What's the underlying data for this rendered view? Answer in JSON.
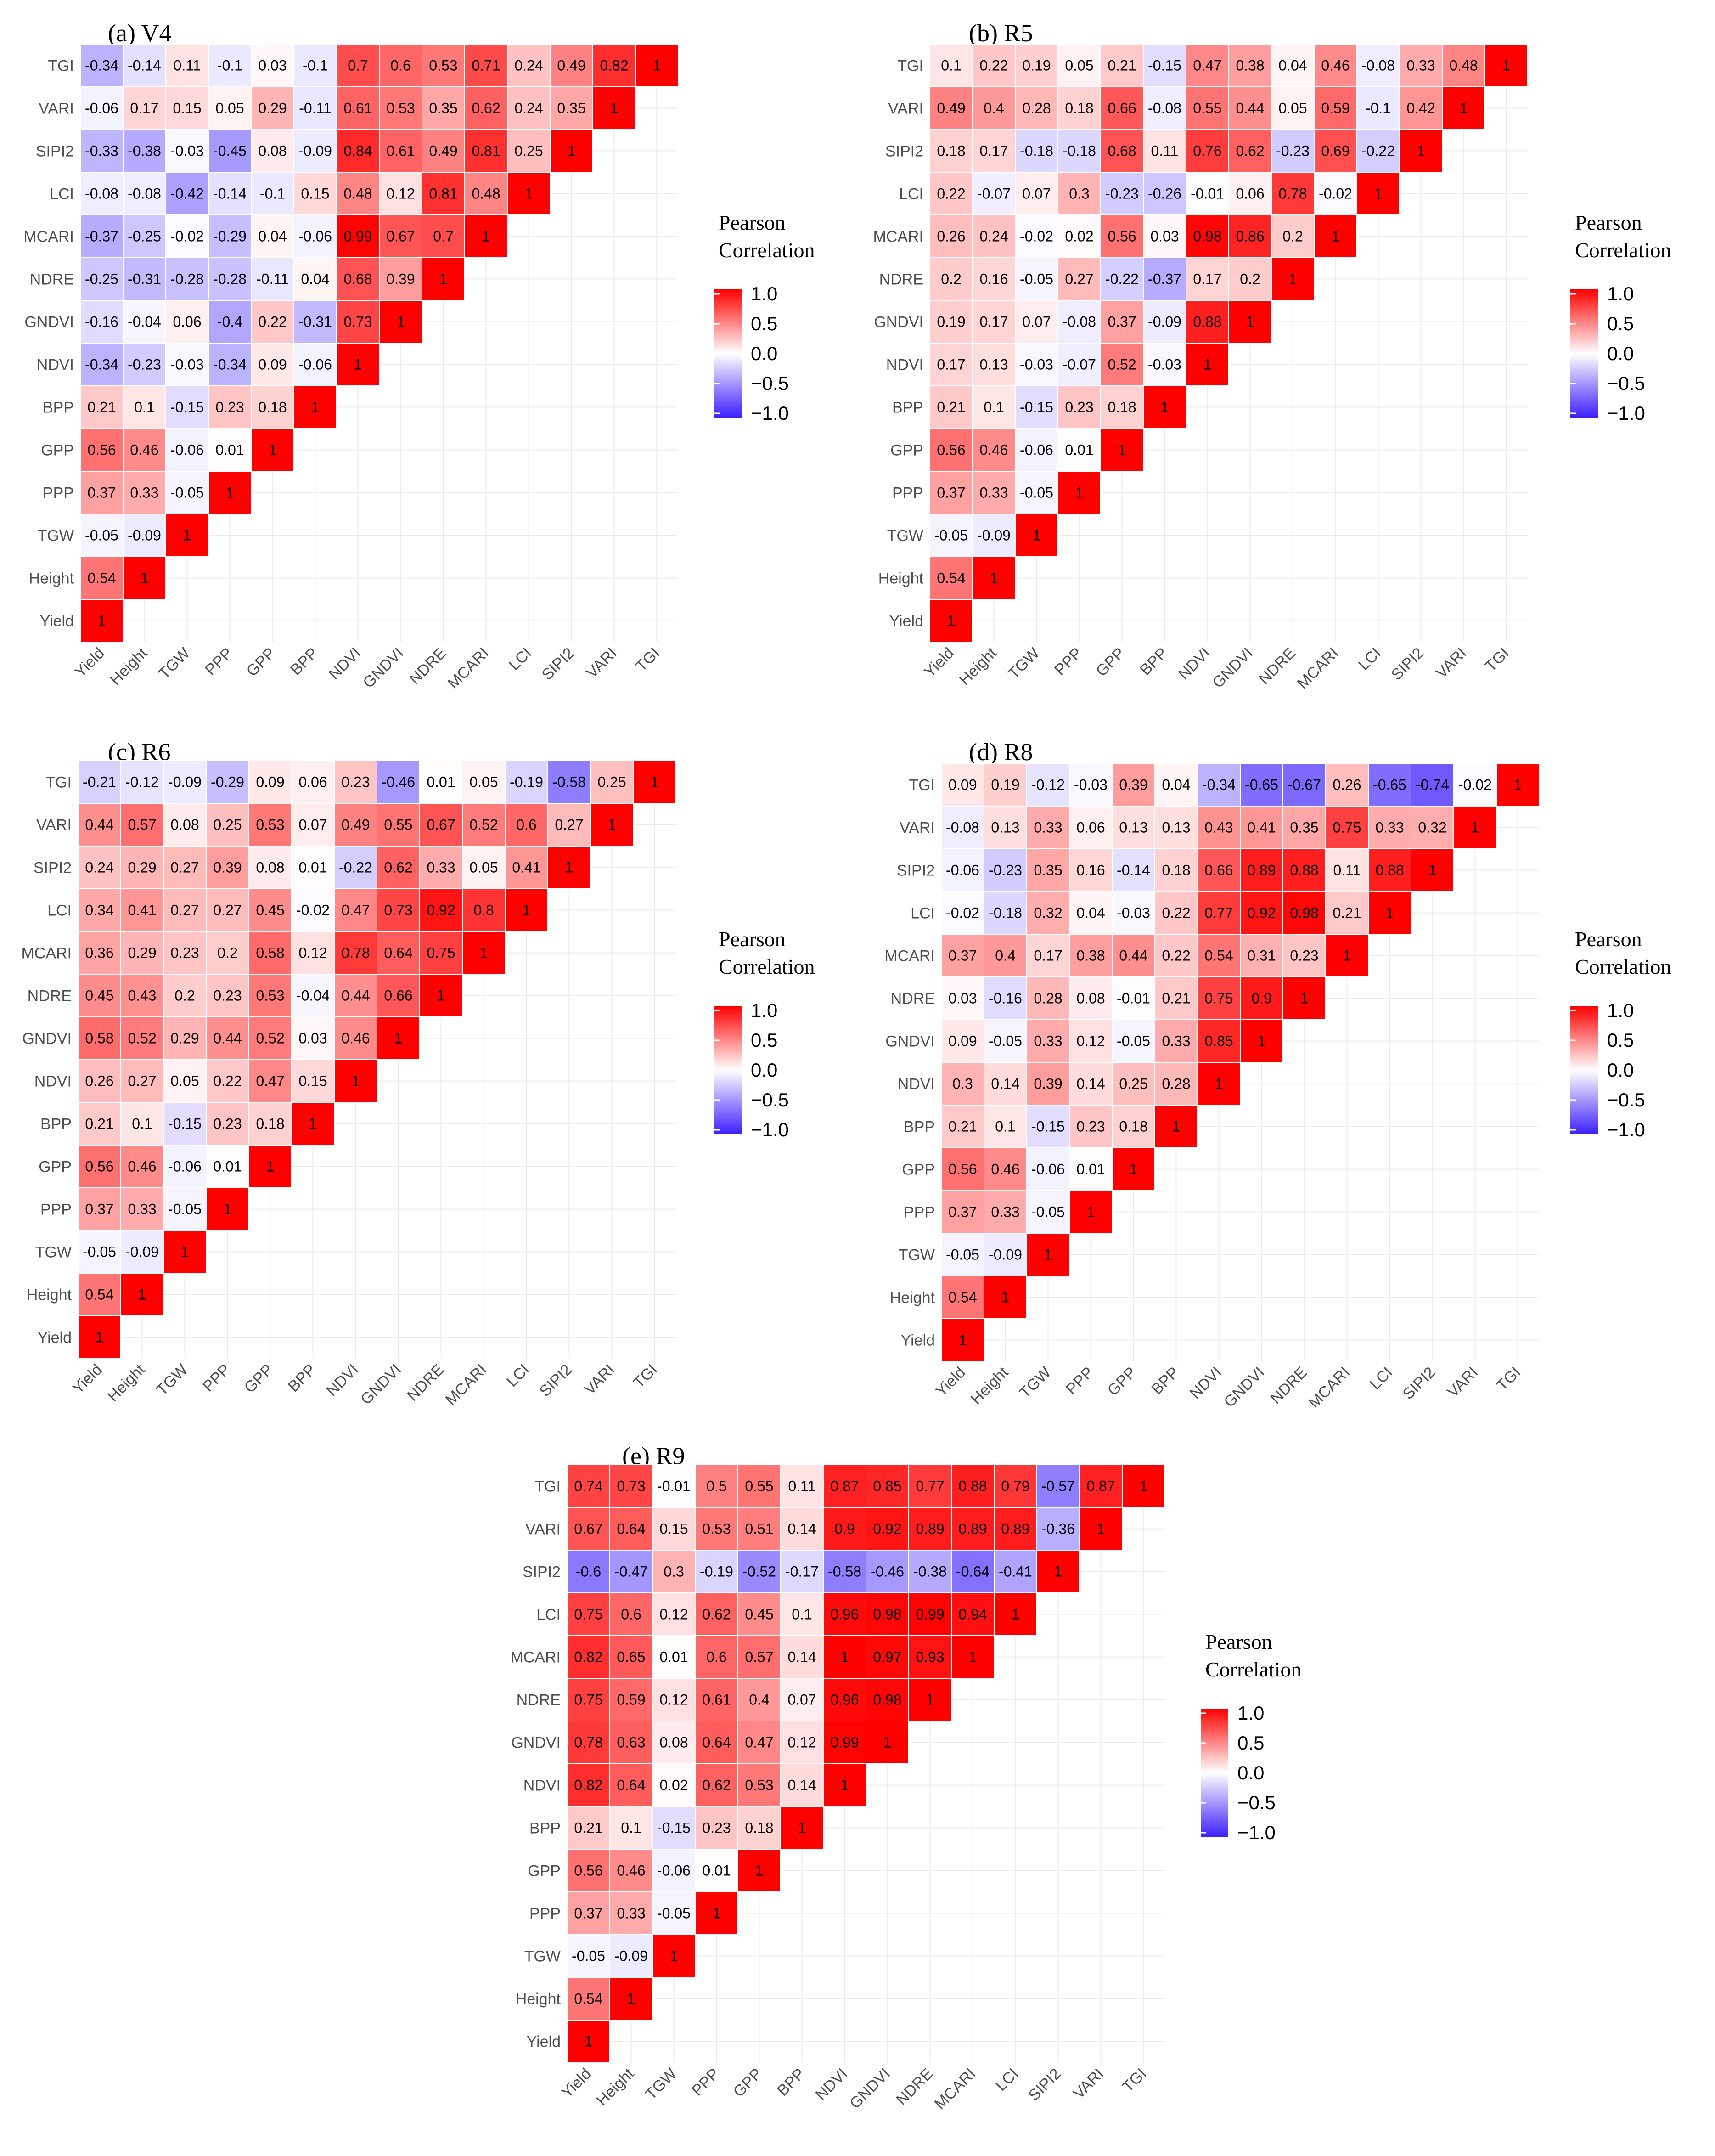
{
  "figure": {
    "legend": {
      "title_line1": "Pearson",
      "title_line2": "Correlation",
      "ticks": [
        "1.0",
        "0.5",
        "0.0",
        "−0.5",
        "−1.0"
      ],
      "tick_values": [
        1.0,
        0.5,
        0.0,
        -0.5,
        -1.0
      ]
    },
    "colors": {
      "positive": "#ff0000",
      "zero": "#ffffff",
      "negative": "#3b1fff"
    }
  },
  "chart_data": [
    {
      "type": "heatmap",
      "title": "(a) V4",
      "x_labels": [
        "Yield",
        "Height",
        "TGW",
        "PPP",
        "GPP",
        "BPP",
        "NDVI",
        "GNDVI",
        "NDRE",
        "MCARI",
        "LCI",
        "SIPI2",
        "VARI",
        "TGI"
      ],
      "y_labels": [
        "Yield",
        "Height",
        "TGW",
        "PPP",
        "GPP",
        "BPP",
        "NDVI",
        "GNDVI",
        "NDRE",
        "MCARI",
        "LCI",
        "SIPI2",
        "VARI",
        "TGI"
      ],
      "values": [
        [
          1
        ],
        [
          0.54,
          1
        ],
        [
          -0.05,
          -0.09,
          1
        ],
        [
          0.37,
          0.33,
          -0.05,
          1
        ],
        [
          0.56,
          0.46,
          -0.06,
          0.01,
          1
        ],
        [
          0.21,
          0.1,
          -0.15,
          0.23,
          0.18,
          1
        ],
        [
          -0.34,
          -0.23,
          -0.03,
          -0.34,
          0.09,
          -0.06,
          1
        ],
        [
          -0.16,
          -0.04,
          0.06,
          -0.4,
          0.22,
          -0.31,
          0.73,
          1
        ],
        [
          -0.25,
          -0.31,
          -0.28,
          -0.28,
          -0.11,
          0.04,
          0.68,
          0.39,
          1
        ],
        [
          -0.37,
          -0.25,
          -0.02,
          -0.29,
          0.04,
          -0.06,
          0.99,
          0.67,
          0.7,
          1
        ],
        [
          -0.08,
          -0.08,
          -0.42,
          -0.14,
          -0.1,
          0.15,
          0.48,
          0.12,
          0.81,
          0.48,
          1
        ],
        [
          -0.33,
          -0.38,
          -0.03,
          -0.45,
          0.08,
          -0.09,
          0.84,
          0.61,
          0.49,
          0.81,
          0.25,
          1
        ],
        [
          -0.06,
          0.17,
          0.15,
          0.05,
          0.29,
          -0.11,
          0.61,
          0.53,
          0.35,
          0.62,
          0.24,
          0.35,
          1
        ],
        [
          -0.34,
          -0.14,
          0.11,
          -0.1,
          0.03,
          -0.1,
          0.7,
          0.6,
          0.53,
          0.71,
          0.24,
          0.49,
          0.82,
          1
        ]
      ]
    },
    {
      "type": "heatmap",
      "title": "(b) R5",
      "x_labels": [
        "Yield",
        "Height",
        "TGW",
        "PPP",
        "GPP",
        "BPP",
        "NDVI",
        "GNDVI",
        "NDRE",
        "MCARI",
        "LCI",
        "SIPI2",
        "VARI",
        "TGI"
      ],
      "y_labels": [
        "Yield",
        "Height",
        "TGW",
        "PPP",
        "GPP",
        "BPP",
        "NDVI",
        "GNDVI",
        "NDRE",
        "MCARI",
        "LCI",
        "SIPI2",
        "VARI",
        "TGI"
      ],
      "values": [
        [
          1
        ],
        [
          0.54,
          1
        ],
        [
          -0.05,
          -0.09,
          1
        ],
        [
          0.37,
          0.33,
          -0.05,
          1
        ],
        [
          0.56,
          0.46,
          -0.06,
          0.01,
          1
        ],
        [
          0.21,
          0.1,
          -0.15,
          0.23,
          0.18,
          1
        ],
        [
          0.17,
          0.13,
          -0.03,
          -0.07,
          0.52,
          -0.03,
          1
        ],
        [
          0.19,
          0.17,
          0.07,
          -0.08,
          0.37,
          -0.09,
          0.88,
          1
        ],
        [
          0.2,
          0.16,
          -0.05,
          0.27,
          -0.22,
          -0.37,
          0.17,
          0.2,
          1
        ],
        [
          0.26,
          0.24,
          -0.02,
          0.02,
          0.56,
          0.03,
          0.98,
          0.86,
          0.2,
          1
        ],
        [
          0.22,
          -0.07,
          0.07,
          0.3,
          -0.23,
          -0.26,
          -0.01,
          0.06,
          0.78,
          -0.02,
          1
        ],
        [
          0.18,
          0.17,
          -0.18,
          -0.18,
          0.68,
          0.11,
          0.76,
          0.62,
          -0.23,
          0.69,
          -0.22,
          1
        ],
        [
          0.49,
          0.4,
          0.28,
          0.18,
          0.66,
          -0.08,
          0.55,
          0.44,
          0.05,
          0.59,
          -0.1,
          0.42,
          1
        ],
        [
          0.1,
          0.22,
          0.19,
          0.05,
          0.21,
          -0.15,
          0.47,
          0.38,
          0.04,
          0.46,
          -0.08,
          0.33,
          0.48,
          1
        ]
      ]
    },
    {
      "type": "heatmap",
      "title": "(c) R6",
      "x_labels": [
        "Yield",
        "Height",
        "TGW",
        "PPP",
        "GPP",
        "BPP",
        "NDVI",
        "GNDVI",
        "NDRE",
        "MCARI",
        "LCI",
        "SIPI2",
        "VARI",
        "TGI"
      ],
      "y_labels": [
        "Yield",
        "Height",
        "TGW",
        "PPP",
        "GPP",
        "BPP",
        "NDVI",
        "GNDVI",
        "NDRE",
        "MCARI",
        "LCI",
        "SIPI2",
        "VARI",
        "TGI"
      ],
      "values": [
        [
          1
        ],
        [
          0.54,
          1
        ],
        [
          -0.05,
          -0.09,
          1
        ],
        [
          0.37,
          0.33,
          -0.05,
          1
        ],
        [
          0.56,
          0.46,
          -0.06,
          0.01,
          1
        ],
        [
          0.21,
          0.1,
          -0.15,
          0.23,
          0.18,
          1
        ],
        [
          0.26,
          0.27,
          0.05,
          0.22,
          0.47,
          0.15,
          1
        ],
        [
          0.58,
          0.52,
          0.29,
          0.44,
          0.52,
          0.03,
          0.46,
          1
        ],
        [
          0.45,
          0.43,
          0.2,
          0.23,
          0.53,
          -0.04,
          0.44,
          0.66,
          1
        ],
        [
          0.36,
          0.29,
          0.23,
          0.2,
          0.58,
          0.12,
          0.78,
          0.64,
          0.75,
          1
        ],
        [
          0.34,
          0.41,
          0.27,
          0.27,
          0.45,
          -0.02,
          0.47,
          0.73,
          0.92,
          0.8,
          1
        ],
        [
          0.24,
          0.29,
          0.27,
          0.39,
          0.08,
          0.01,
          -0.22,
          0.62,
          0.33,
          0.05,
          0.41,
          1
        ],
        [
          0.44,
          0.57,
          0.08,
          0.25,
          0.53,
          0.07,
          0.49,
          0.55,
          0.67,
          0.52,
          0.6,
          0.27,
          1
        ],
        [
          -0.21,
          -0.12,
          -0.09,
          -0.29,
          0.09,
          0.06,
          0.23,
          -0.46,
          0.01,
          0.05,
          -0.19,
          -0.58,
          0.25,
          1
        ]
      ]
    },
    {
      "type": "heatmap",
      "title": "(d) R8",
      "x_labels": [
        "Yield",
        "Height",
        "TGW",
        "PPP",
        "GPP",
        "BPP",
        "NDVI",
        "GNDVI",
        "NDRE",
        "MCARI",
        "LCI",
        "SIPI2",
        "VARI",
        "TGI"
      ],
      "y_labels": [
        "Yield",
        "Height",
        "TGW",
        "PPP",
        "GPP",
        "BPP",
        "NDVI",
        "GNDVI",
        "NDRE",
        "MCARI",
        "LCI",
        "SIPI2",
        "VARI",
        "TGI"
      ],
      "values": [
        [
          1
        ],
        [
          0.54,
          1
        ],
        [
          -0.05,
          -0.09,
          1
        ],
        [
          0.37,
          0.33,
          -0.05,
          1
        ],
        [
          0.56,
          0.46,
          -0.06,
          0.01,
          1
        ],
        [
          0.21,
          0.1,
          -0.15,
          0.23,
          0.18,
          1
        ],
        [
          0.3,
          0.14,
          0.39,
          0.14,
          0.25,
          0.28,
          1
        ],
        [
          0.09,
          -0.05,
          0.33,
          0.12,
          -0.05,
          0.33,
          0.85,
          1
        ],
        [
          0.03,
          -0.16,
          0.28,
          0.08,
          -0.01,
          0.21,
          0.75,
          0.9,
          1
        ],
        [
          0.37,
          0.4,
          0.17,
          0.38,
          0.44,
          0.22,
          0.54,
          0.31,
          0.23,
          1
        ],
        [
          -0.02,
          -0.18,
          0.32,
          0.04,
          -0.03,
          0.22,
          0.77,
          0.92,
          0.98,
          0.21,
          1
        ],
        [
          -0.06,
          -0.23,
          0.35,
          0.16,
          -0.14,
          0.18,
          0.66,
          0.89,
          0.88,
          0.11,
          0.88,
          1
        ],
        [
          -0.08,
          0.13,
          0.33,
          0.06,
          0.13,
          0.13,
          0.43,
          0.41,
          0.35,
          0.75,
          0.33,
          0.32,
          1
        ],
        [
          0.09,
          0.19,
          -0.12,
          -0.03,
          0.39,
          0.04,
          -0.34,
          -0.65,
          -0.67,
          0.26,
          -0.65,
          -0.74,
          -0.02,
          1
        ]
      ]
    },
    {
      "type": "heatmap",
      "title": "(e) R9",
      "x_labels": [
        "Yield",
        "Height",
        "TGW",
        "PPP",
        "GPP",
        "BPP",
        "NDVI",
        "GNDVI",
        "NDRE",
        "MCARI",
        "LCI",
        "SIPI2",
        "VARI",
        "TGI"
      ],
      "y_labels": [
        "Yield",
        "Height",
        "TGW",
        "PPP",
        "GPP",
        "BPP",
        "NDVI",
        "GNDVI",
        "NDRE",
        "MCARI",
        "LCI",
        "SIPI2",
        "VARI",
        "TGI"
      ],
      "values": [
        [
          1
        ],
        [
          0.54,
          1
        ],
        [
          -0.05,
          -0.09,
          1
        ],
        [
          0.37,
          0.33,
          -0.05,
          1
        ],
        [
          0.56,
          0.46,
          -0.06,
          0.01,
          1
        ],
        [
          0.21,
          0.1,
          -0.15,
          0.23,
          0.18,
          1
        ],
        [
          0.82,
          0.64,
          0.02,
          0.62,
          0.53,
          0.14,
          1
        ],
        [
          0.78,
          0.63,
          0.08,
          0.64,
          0.47,
          0.12,
          0.99,
          1
        ],
        [
          0.75,
          0.59,
          0.12,
          0.61,
          0.4,
          0.07,
          0.96,
          0.98,
          1
        ],
        [
          0.82,
          0.65,
          0.01,
          0.6,
          0.57,
          0.14,
          1,
          0.97,
          0.93,
          1
        ],
        [
          0.75,
          0.6,
          0.12,
          0.62,
          0.45,
          0.1,
          0.96,
          0.98,
          0.99,
          0.94,
          1
        ],
        [
          -0.6,
          -0.47,
          0.3,
          -0.19,
          -0.52,
          -0.17,
          -0.58,
          -0.46,
          -0.38,
          -0.64,
          -0.41,
          1
        ],
        [
          0.67,
          0.64,
          0.15,
          0.53,
          0.51,
          0.14,
          0.9,
          0.92,
          0.89,
          0.89,
          0.89,
          -0.36,
          1
        ],
        [
          0.74,
          0.73,
          -0.01,
          0.5,
          0.55,
          0.11,
          0.87,
          0.85,
          0.77,
          0.88,
          0.79,
          -0.57,
          0.87,
          1
        ]
      ]
    }
  ]
}
